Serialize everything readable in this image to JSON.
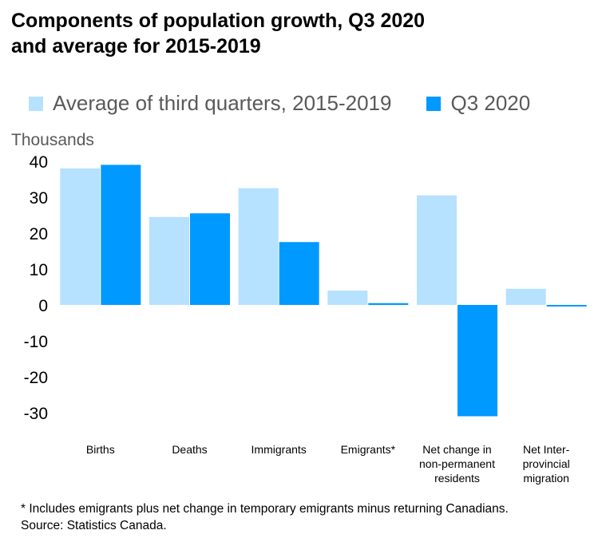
{
  "title": {
    "line1": "Components of population growth, Q3 2020",
    "line2": "and average for 2015-2019"
  },
  "legend": [
    {
      "label": "Average of third quarters, 2015-2019",
      "color": "#b6e1ff"
    },
    {
      "label": "Q3 2020",
      "color": "#0099ff"
    }
  ],
  "footnote": {
    "note": "*  Includes emigrants plus net change in temporary emigrants minus returning Canadians.",
    "source": "Source: Statistics Canada."
  },
  "chart_data": {
    "type": "bar",
    "title": "Components of population growth, Q3 2020 and average for 2015-2019",
    "ylabel": "Thousands",
    "xlabel": "",
    "ylim": [
      -30,
      40
    ],
    "yticks": [
      40,
      30,
      20,
      10,
      0,
      -10,
      -20,
      -30
    ],
    "grid": false,
    "legend_position": "top",
    "categories": [
      [
        "Births"
      ],
      [
        "Deaths"
      ],
      [
        "Immigrants"
      ],
      [
        "Emigrants*"
      ],
      [
        "Net change in",
        "non-permanent",
        "residents"
      ],
      [
        "Net Inter-",
        "provincial",
        "migration"
      ]
    ],
    "series": [
      {
        "name": "Average of third quarters, 2015-2019",
        "color": "#b6e1ff",
        "values": [
          38,
          24.5,
          32.5,
          4,
          30.5,
          4.5
        ]
      },
      {
        "name": "Q3 2020",
        "color": "#0099ff",
        "values": [
          39,
          25.5,
          17.5,
          0.5,
          -31,
          -0.3
        ]
      }
    ]
  }
}
